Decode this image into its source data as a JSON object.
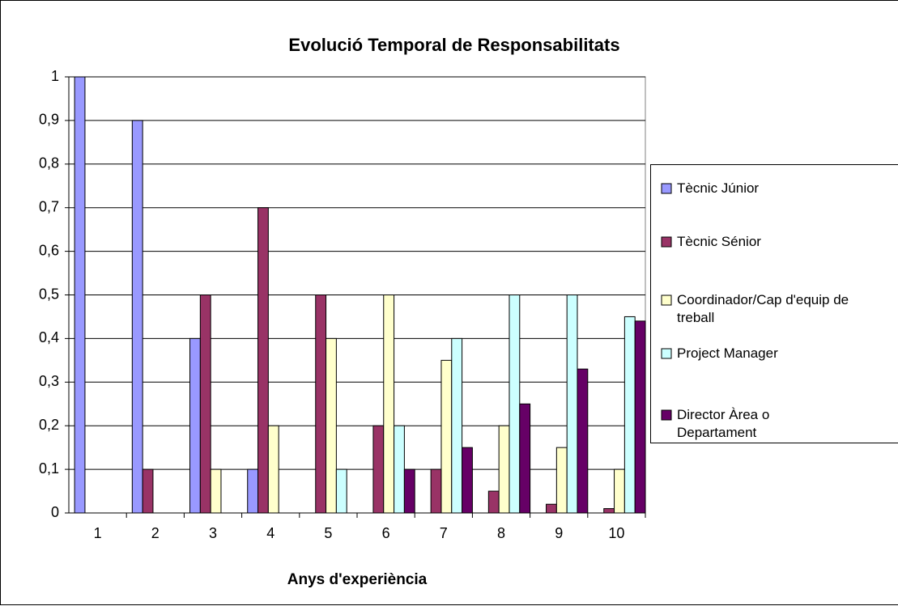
{
  "chart_data": {
    "type": "bar",
    "title": "Evolució Temporal de Responsabilitats",
    "x_label": "Anys d'experiència",
    "categories": [
      "1",
      "2",
      "3",
      "4",
      "5",
      "6",
      "7",
      "8",
      "9",
      "10"
    ],
    "series": [
      {
        "name": "Tècnic Júnior",
        "color": "#9999ff",
        "values": [
          1,
          0.9,
          0.4,
          0.1,
          0,
          0,
          0,
          0,
          0,
          0
        ]
      },
      {
        "name": "Tècnic Sénior",
        "color": "#993366",
        "values": [
          0,
          0.1,
          0.5,
          0.7,
          0.5,
          0.2,
          0.1,
          0.05,
          0.02,
          0.01
        ]
      },
      {
        "name": "Coordinador/Cap d'equip de treball",
        "color": "#ffffcc",
        "values": [
          0,
          0,
          0.1,
          0.2,
          0.4,
          0.5,
          0.35,
          0.2,
          0.15,
          0.1
        ]
      },
      {
        "name": "Project Manager",
        "color": "#ccffff",
        "values": [
          0,
          0,
          0,
          0,
          0.1,
          0.2,
          0.4,
          0.5,
          0.5,
          0.45
        ]
      },
      {
        "name": "Director Àrea o Departament",
        "color": "#660066",
        "values": [
          0,
          0,
          0,
          0,
          0,
          0.1,
          0.15,
          0.25,
          0.33,
          0.44
        ]
      }
    ],
    "ylim": [
      0,
      1
    ],
    "yticks": [
      0,
      {
        "value": 0.1,
        "label": "0,1"
      },
      {
        "value": 0.2,
        "label": "0,2"
      },
      {
        "value": 0.3,
        "label": "0,3"
      },
      {
        "value": 0.4,
        "label": "0,4"
      },
      {
        "value": 0.5,
        "label": "0,5"
      },
      {
        "value": 0.6,
        "label": "0,6"
      },
      {
        "value": 0.7,
        "label": "0,7"
      },
      {
        "value": 0.8,
        "label": "0,8"
      },
      {
        "value": 0.9,
        "label": "0,9"
      },
      1
    ],
    "grid": true,
    "legend": "right"
  }
}
